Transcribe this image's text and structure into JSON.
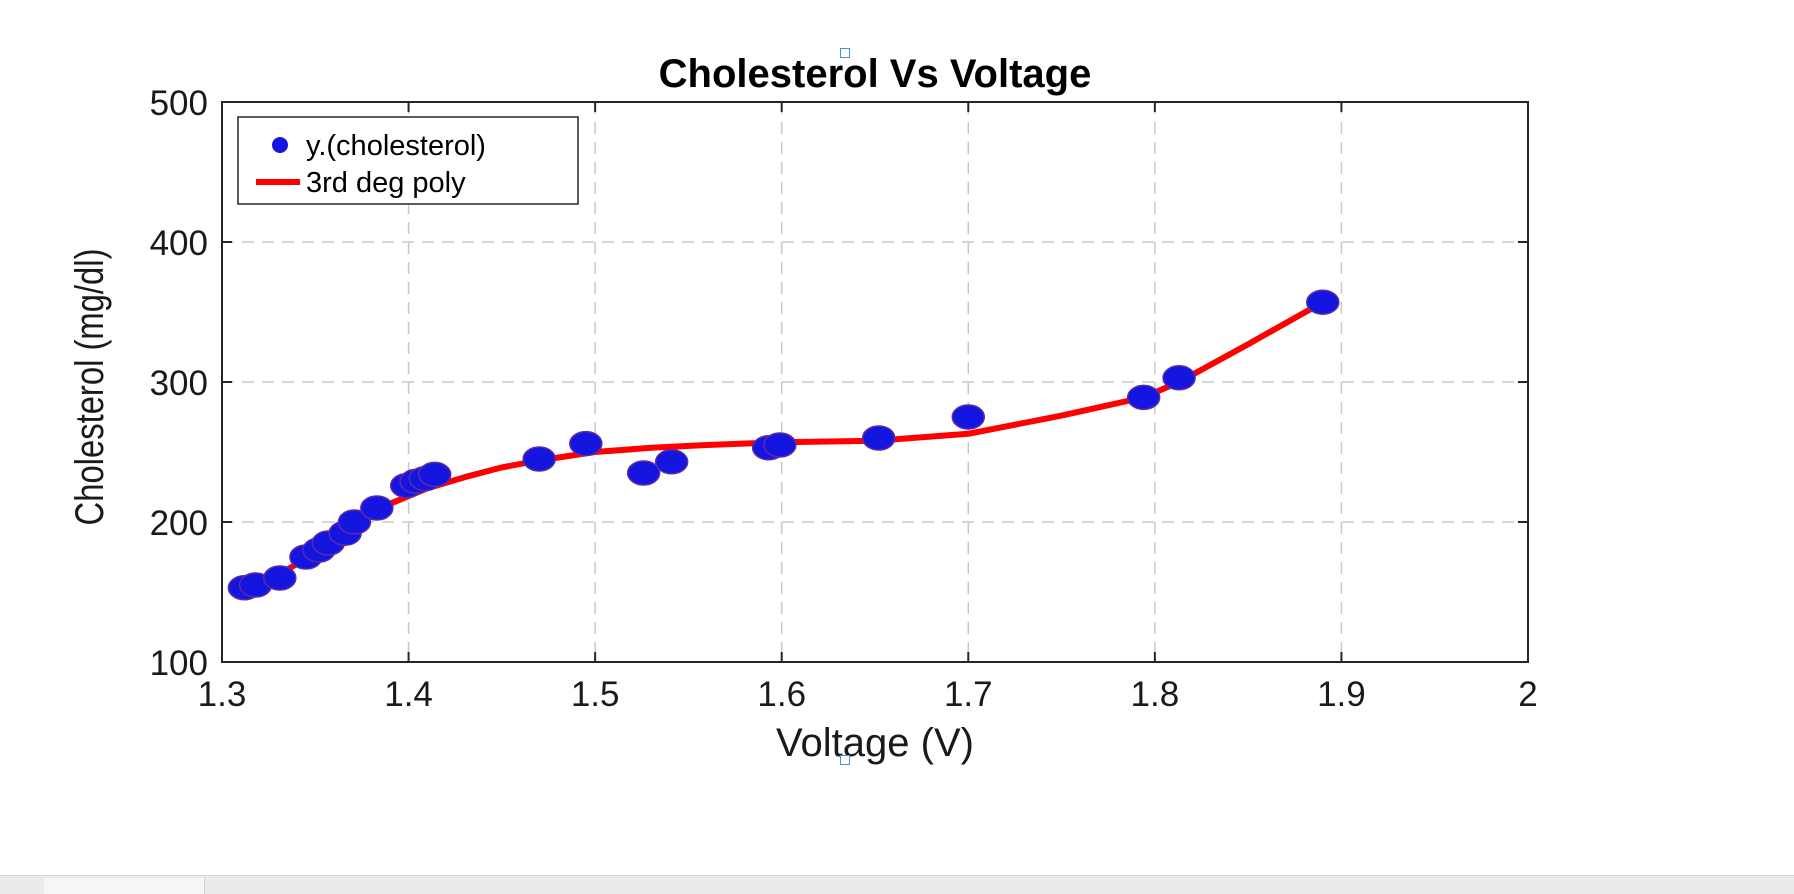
{
  "chart_data": {
    "type": "scatter",
    "title": "Cholesterol Vs Voltage",
    "xlabel": "Voltage (V)",
    "ylabel": "Cholesterol (mg/dl)",
    "xlim": [
      1.3,
      2
    ],
    "ylim": [
      100,
      500
    ],
    "xticks": [
      "1.3",
      "1.4",
      "1.5",
      "1.6",
      "1.7",
      "1.8",
      "1.9",
      "2"
    ],
    "yticks": [
      "100",
      "200",
      "300",
      "400",
      "500"
    ],
    "grid": true,
    "legend_position": "top-left",
    "series": [
      {
        "name": "y.(cholesterol)",
        "kind": "scatter",
        "color": "#1515e0",
        "points": [
          [
            1.312,
            153
          ],
          [
            1.318,
            155
          ],
          [
            1.331,
            160
          ],
          [
            1.345,
            175
          ],
          [
            1.352,
            180
          ],
          [
            1.357,
            185
          ],
          [
            1.366,
            192
          ],
          [
            1.371,
            200
          ],
          [
            1.383,
            210
          ],
          [
            1.399,
            226
          ],
          [
            1.404,
            229
          ],
          [
            1.409,
            231
          ],
          [
            1.414,
            234
          ],
          [
            1.47,
            245
          ],
          [
            1.495,
            256
          ],
          [
            1.526,
            235
          ],
          [
            1.541,
            243
          ],
          [
            1.593,
            253
          ],
          [
            1.599,
            255
          ],
          [
            1.652,
            260
          ],
          [
            1.7,
            275
          ],
          [
            1.794,
            289
          ],
          [
            1.813,
            303
          ],
          [
            1.89,
            357
          ]
        ]
      },
      {
        "name": "3rd deg poly",
        "kind": "line",
        "color": "#ff0000",
        "points": [
          [
            1.312,
            152
          ],
          [
            1.33,
            162
          ],
          [
            1.35,
            178
          ],
          [
            1.37,
            196
          ],
          [
            1.39,
            213
          ],
          [
            1.41,
            224
          ],
          [
            1.43,
            232
          ],
          [
            1.45,
            239
          ],
          [
            1.47,
            244
          ],
          [
            1.5,
            250
          ],
          [
            1.53,
            253
          ],
          [
            1.56,
            255
          ],
          [
            1.6,
            257
          ],
          [
            1.65,
            258
          ],
          [
            1.7,
            263
          ],
          [
            1.75,
            276
          ],
          [
            1.794,
            289
          ],
          [
            1.813,
            300
          ],
          [
            1.85,
            327
          ],
          [
            1.89,
            357
          ]
        ]
      }
    ]
  }
}
